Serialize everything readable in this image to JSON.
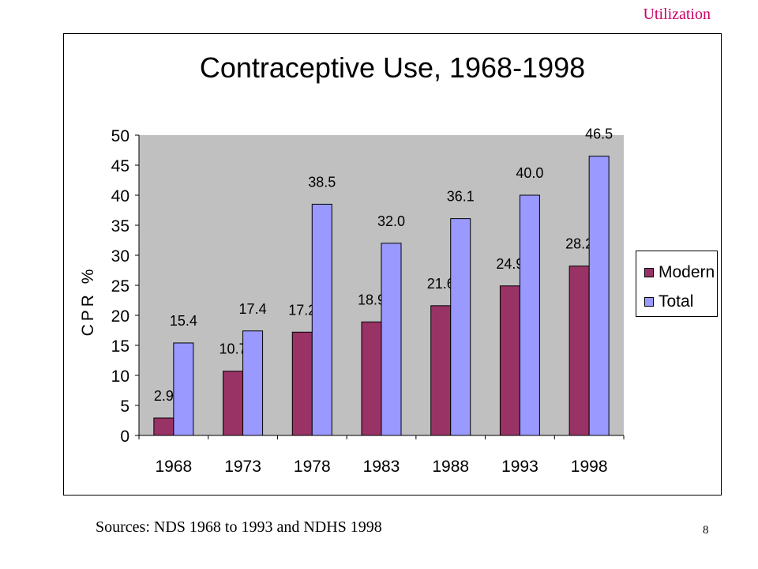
{
  "header": {
    "tag": "Utilization"
  },
  "footer": {
    "source": "Sources: NDS 1968 to 1993 and NDHS 1998",
    "page_number": "8"
  },
  "colors": {
    "modern": "#993366",
    "total": "#9999ff",
    "plot_bg": "#c0c0c0",
    "tag": "#cc0066"
  },
  "chart_data": {
    "type": "bar",
    "title": "Contraceptive Use, 1968-1998",
    "xlabel": "",
    "ylabel": "CPR %",
    "ylim": [
      0,
      50
    ],
    "yticks": [
      0,
      5,
      10,
      15,
      20,
      25,
      30,
      35,
      40,
      45,
      50
    ],
    "categories": [
      "1968",
      "1973",
      "1978",
      "1983",
      "1988",
      "1993",
      "1998"
    ],
    "series": [
      {
        "name": "Modern",
        "values": [
          2.9,
          10.7,
          17.2,
          18.9,
          21.6,
          24.9,
          28.2
        ],
        "labels": [
          "2.9",
          "10.7",
          "17.2",
          "18.9",
          "21.6",
          "24.9",
          "28.2"
        ]
      },
      {
        "name": "Total",
        "values": [
          15.4,
          17.4,
          38.5,
          32.0,
          36.1,
          40.0,
          46.5
        ],
        "labels": [
          "15.4",
          "17.4",
          "38.5",
          "32.0",
          "36.1",
          "40.0",
          "46.5"
        ]
      }
    ],
    "grid": false,
    "legend": "right"
  }
}
